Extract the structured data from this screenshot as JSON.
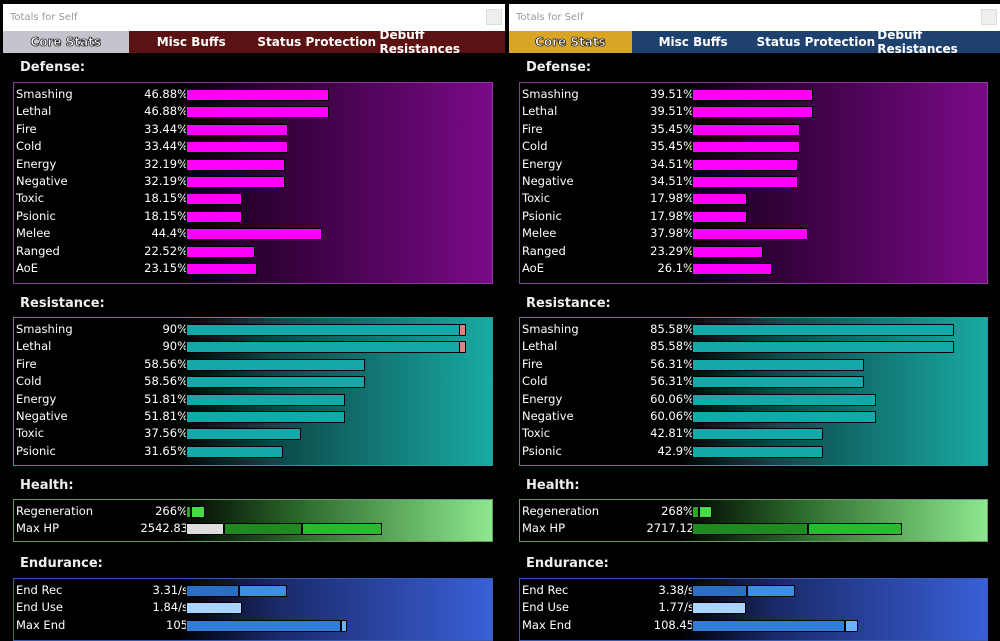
{
  "windows": [
    {
      "title": "Totals for Self",
      "tab_bar_color": "#5c1212",
      "active_tab_color": "#c4c4cc",
      "tabs": [
        {
          "label": "Core Stats",
          "active": true
        },
        {
          "label": "Misc Buffs"
        },
        {
          "label": "Status Protection"
        },
        {
          "label": "Debuff Resistances"
        }
      ],
      "defense": {
        "title": "Defense:",
        "rows": [
          {
            "label": "Smashing",
            "value": "46.88%",
            "fill": 46.88
          },
          {
            "label": "Lethal",
            "value": "46.88%",
            "fill": 46.88
          },
          {
            "label": "Fire",
            "value": "33.44%",
            "fill": 33.44
          },
          {
            "label": "Cold",
            "value": "33.44%",
            "fill": 33.44
          },
          {
            "label": "Energy",
            "value": "32.19%",
            "fill": 32.19
          },
          {
            "label": "Negative",
            "value": "32.19%",
            "fill": 32.19
          },
          {
            "label": "Toxic",
            "value": "18.15%",
            "fill": 18.15
          },
          {
            "label": "Psionic",
            "value": "18.15%",
            "fill": 18.15
          },
          {
            "label": "Melee",
            "value": "44.4%",
            "fill": 44.4
          },
          {
            "label": "Ranged",
            "value": "22.52%",
            "fill": 22.52
          },
          {
            "label": "AoE",
            "value": "23.15%",
            "fill": 23.15
          }
        ]
      },
      "resistance": {
        "title": "Resistance:",
        "rows": [
          {
            "label": "Smashing",
            "value": "90%",
            "fill": 90,
            "capped": true
          },
          {
            "label": "Lethal",
            "value": "90%",
            "fill": 90,
            "capped": true
          },
          {
            "label": "Fire",
            "value": "58.56%",
            "fill": 58.56
          },
          {
            "label": "Cold",
            "value": "58.56%",
            "fill": 58.56
          },
          {
            "label": "Energy",
            "value": "51.81%",
            "fill": 51.81
          },
          {
            "label": "Negative",
            "value": "51.81%",
            "fill": 51.81
          },
          {
            "label": "Toxic",
            "value": "37.56%",
            "fill": 37.56
          },
          {
            "label": "Psionic",
            "value": "31.65%",
            "fill": 31.65
          }
        ]
      },
      "health": {
        "title": "Health:",
        "rows": [
          {
            "label": "Regeneration",
            "value": "266%",
            "segments": [
              [
                1.6,
                "#2aa82a"
              ],
              [
                4.6,
                "#44dd44"
              ]
            ]
          },
          {
            "label": "Max HP",
            "value": "2542.83",
            "segments": [
              [
                12.4,
                "#dddddd"
              ],
              [
                25.5,
                "#1f8a1f"
              ],
              [
                26.1,
                "#2db82d"
              ]
            ]
          }
        ]
      },
      "endurance": {
        "title": "Endurance:",
        "rows": [
          {
            "label": "End Rec",
            "value": "3.31/s",
            "segments": [
              [
                17.3,
                "#2a6fc4"
              ],
              [
                15.7,
                "#3c8ee8"
              ]
            ]
          },
          {
            "label": "End Use",
            "value": "1.84/s",
            "segments": [
              [
                18.3,
                "#a8d4ff"
              ]
            ]
          },
          {
            "label": "Max End",
            "value": "105",
            "segments": [
              [
                50.7,
                "#2f7dd6"
              ],
              [
                2,
                "#6ab2ff"
              ]
            ]
          }
        ]
      }
    },
    {
      "title": "Totals for Self",
      "tab_bar_color": "#1f4170",
      "active_tab_color": "#d9a526",
      "tabs": [
        {
          "label": "Core Stats",
          "active": true
        },
        {
          "label": "Misc Buffs"
        },
        {
          "label": "Status Protection"
        },
        {
          "label": "Debuff Resistances"
        }
      ],
      "defense": {
        "title": "Defense:",
        "rows": [
          {
            "label": "Smashing",
            "value": "39.51%",
            "fill": 39.51
          },
          {
            "label": "Lethal",
            "value": "39.51%",
            "fill": 39.51
          },
          {
            "label": "Fire",
            "value": "35.45%",
            "fill": 35.45
          },
          {
            "label": "Cold",
            "value": "35.45%",
            "fill": 35.45
          },
          {
            "label": "Energy",
            "value": "34.51%",
            "fill": 34.51
          },
          {
            "label": "Negative",
            "value": "34.51%",
            "fill": 34.51
          },
          {
            "label": "Toxic",
            "value": "17.98%",
            "fill": 17.98
          },
          {
            "label": "Psionic",
            "value": "17.98%",
            "fill": 17.98
          },
          {
            "label": "Melee",
            "value": "37.98%",
            "fill": 37.98
          },
          {
            "label": "Ranged",
            "value": "23.29%",
            "fill": 23.29
          },
          {
            "label": "AoE",
            "value": "26.1%",
            "fill": 26.1
          }
        ]
      },
      "resistance": {
        "title": "Resistance:",
        "rows": [
          {
            "label": "Smashing",
            "value": "85.58%",
            "fill": 85.58
          },
          {
            "label": "Lethal",
            "value": "85.58%",
            "fill": 85.58
          },
          {
            "label": "Fire",
            "value": "56.31%",
            "fill": 56.31
          },
          {
            "label": "Cold",
            "value": "56.31%",
            "fill": 56.31
          },
          {
            "label": "Energy",
            "value": "60.06%",
            "fill": 60.06
          },
          {
            "label": "Negative",
            "value": "60.06%",
            "fill": 60.06
          },
          {
            "label": "Toxic",
            "value": "42.81%",
            "fill": 42.81
          },
          {
            "label": "Psionic",
            "value": "42.9%",
            "fill": 42.9
          }
        ]
      },
      "health": {
        "title": "Health:",
        "rows": [
          {
            "label": "Regeneration",
            "value": "268%",
            "segments": [
              [
                2.3,
                "#2aa82a"
              ],
              [
                4.2,
                "#44dd44"
              ]
            ]
          },
          {
            "label": "Max HP",
            "value": "2717.12",
            "segments": [
              [
                37.9,
                "#1f8a1f"
              ],
              [
                30.7,
                "#2db82d"
              ]
            ]
          }
        ]
      },
      "endurance": {
        "title": "Endurance:",
        "rows": [
          {
            "label": "End Rec",
            "value": "3.38/s",
            "segments": [
              [
                18,
                "#2a6fc4"
              ],
              [
                15.7,
                "#3c8ee8"
              ]
            ]
          },
          {
            "label": "End Use",
            "value": "1.77/s",
            "segments": [
              [
                17.6,
                "#a8d4ff"
              ]
            ]
          },
          {
            "label": "Max End",
            "value": "108.45",
            "segments": [
              [
                50,
                "#2f7dd6"
              ],
              [
                4.2,
                "#6ab2ff"
              ]
            ]
          }
        ]
      }
    }
  ],
  "colors": {
    "defense": "#ff00ff",
    "resistance": "#14a8a8",
    "capped_tip": "#e08080"
  }
}
